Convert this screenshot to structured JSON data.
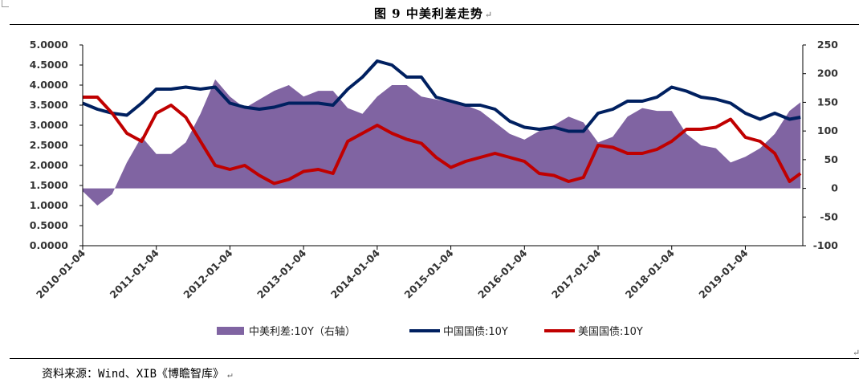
{
  "page": {
    "figure_title": "图 9    中美利差走势",
    "return_mark": "↵",
    "source_note": "资料来源：Wind、XIB《博瞻智库》"
  },
  "chart_data": {
    "type": "area+line",
    "title": "",
    "x_ticks": [
      "2010-01-04",
      "2011-01-04",
      "2012-01-04",
      "2013-01-04",
      "2014-01-04",
      "2015-01-04",
      "2016-01-04",
      "2017-01-04",
      "2018-01-04",
      "2019-01-04"
    ],
    "left_axis": {
      "ylim": [
        0,
        5
      ],
      "ticks": [
        "0.0000",
        "0.5000",
        "1.0000",
        "1.5000",
        "2.0000",
        "2.5000",
        "3.0000",
        "3.5000",
        "4.0000",
        "4.5000",
        "5.0000"
      ]
    },
    "right_axis": {
      "ylim": [
        -100,
        250
      ],
      "ticks": [
        "-100",
        "-50",
        "0",
        "50",
        "100",
        "150",
        "200",
        "250"
      ]
    },
    "legend": [
      {
        "name": "中美利差:10Y（右轴）",
        "color": "#8064a2",
        "kind": "area"
      },
      {
        "name": "中国国债:10Y",
        "color": "#002060",
        "kind": "line"
      },
      {
        "name": "美国国债:10Y",
        "color": "#c00000",
        "kind": "line"
      }
    ],
    "x": [
      2010.0,
      2010.2,
      2010.4,
      2010.6,
      2010.8,
      2011.0,
      2011.2,
      2011.4,
      2011.6,
      2011.8,
      2012.0,
      2012.2,
      2012.4,
      2012.6,
      2012.8,
      2013.0,
      2013.2,
      2013.4,
      2013.6,
      2013.8,
      2014.0,
      2014.2,
      2014.4,
      2014.6,
      2014.8,
      2015.0,
      2015.2,
      2015.4,
      2015.6,
      2015.8,
      2016.0,
      2016.2,
      2016.4,
      2016.6,
      2016.8,
      2017.0,
      2017.2,
      2017.4,
      2017.6,
      2017.8,
      2018.0,
      2018.2,
      2018.4,
      2018.6,
      2018.8,
      2019.0,
      2019.2,
      2019.4,
      2019.6,
      2019.75
    ],
    "series": [
      {
        "name": "中国国债:10Y",
        "axis": "left",
        "values": [
          3.55,
          3.4,
          3.3,
          3.25,
          3.55,
          3.9,
          3.9,
          3.95,
          3.9,
          3.95,
          3.55,
          3.45,
          3.4,
          3.45,
          3.55,
          3.55,
          3.55,
          3.5,
          3.9,
          4.2,
          4.6,
          4.5,
          4.2,
          4.2,
          3.7,
          3.6,
          3.5,
          3.5,
          3.4,
          3.1,
          2.95,
          2.9,
          2.95,
          2.85,
          2.85,
          3.3,
          3.4,
          3.6,
          3.6,
          3.7,
          3.95,
          3.85,
          3.7,
          3.65,
          3.55,
          3.3,
          3.15,
          3.3,
          3.15,
          3.2
        ]
      },
      {
        "name": "美国国债:10Y",
        "axis": "left",
        "values": [
          3.7,
          3.7,
          3.3,
          2.8,
          2.6,
          3.3,
          3.5,
          3.2,
          2.6,
          2.0,
          1.9,
          2.0,
          1.75,
          1.55,
          1.65,
          1.85,
          1.9,
          1.8,
          2.6,
          2.8,
          3.0,
          2.8,
          2.65,
          2.55,
          2.2,
          1.95,
          2.1,
          2.2,
          2.3,
          2.2,
          2.1,
          1.8,
          1.75,
          1.6,
          1.7,
          2.5,
          2.45,
          2.3,
          2.3,
          2.4,
          2.6,
          2.9,
          2.9,
          2.95,
          3.15,
          2.7,
          2.6,
          2.3,
          1.6,
          1.8
        ]
      },
      {
        "name": "中美利差:10Y（右轴）",
        "axis": "right",
        "values": [
          -5,
          -30,
          -10,
          45,
          90,
          60,
          60,
          80,
          130,
          190,
          160,
          140,
          155,
          170,
          180,
          160,
          170,
          170,
          140,
          130,
          160,
          180,
          180,
          160,
          155,
          150,
          145,
          135,
          115,
          95,
          85,
          100,
          110,
          125,
          115,
          80,
          90,
          125,
          140,
          135,
          135,
          95,
          75,
          70,
          45,
          55,
          70,
          95,
          135,
          150
        ]
      }
    ]
  }
}
